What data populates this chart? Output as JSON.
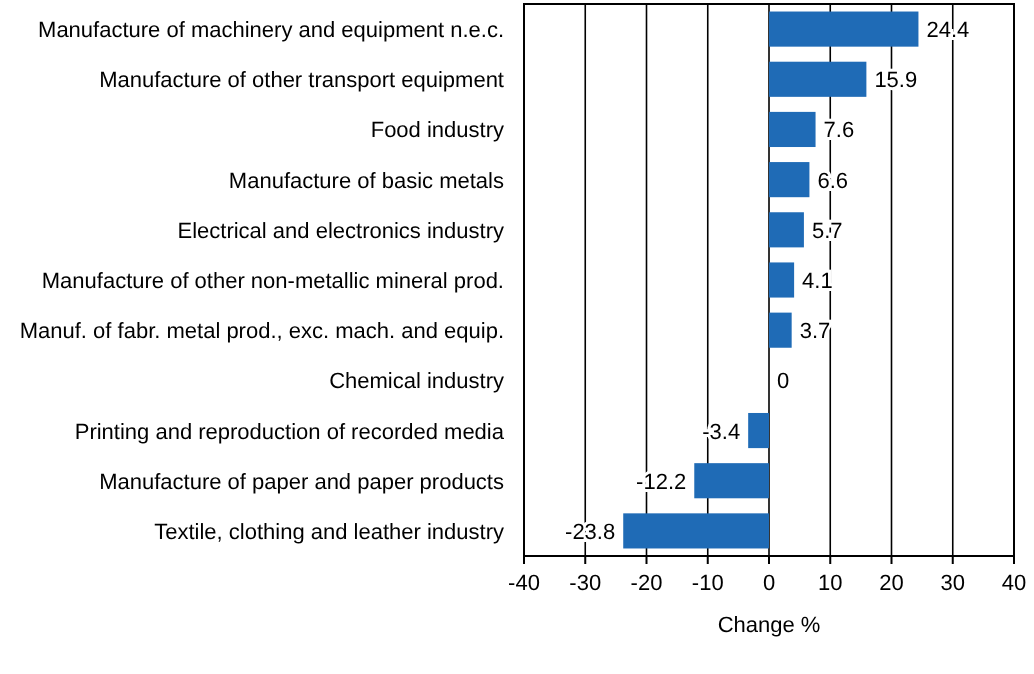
{
  "chart_data": {
    "type": "bar",
    "orientation": "horizontal",
    "xlabel": "Change %",
    "categories": [
      "Manufacture of machinery and equipment n.e.c.",
      "Manufacture of other transport equipment",
      "Food industry",
      "Manufacture of basic metals",
      "Electrical and electronics industry",
      "Manufacture of other non-metallic mineral prod.",
      "Manuf. of fabr. metal prod., exc. mach. and equip.",
      "Chemical industry",
      "Printing and reproduction of recorded media",
      "Manufacture of paper and paper products",
      "Textile, clothing and leather industry"
    ],
    "values": [
      24.4,
      15.9,
      7.6,
      6.6,
      5.7,
      4.1,
      3.7,
      0,
      -3.4,
      -12.2,
      -23.8
    ],
    "color": "#1f6bb6",
    "data_labels": true,
    "grid": "x",
    "xlim": [
      -40,
      40
    ],
    "xticks": [
      -40,
      -30,
      -20,
      -10,
      0,
      10,
      20,
      30,
      40
    ]
  }
}
